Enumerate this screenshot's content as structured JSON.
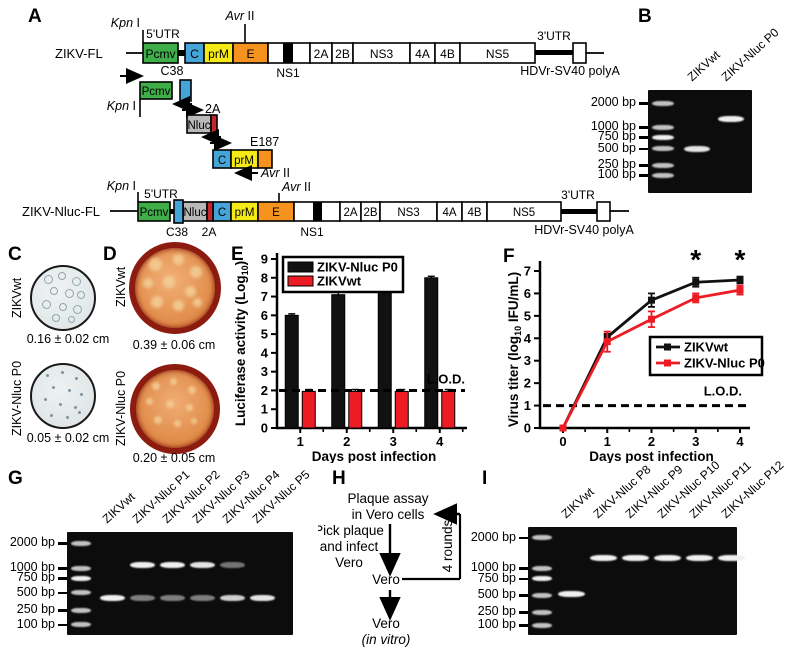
{
  "panels": {
    "a": "A",
    "b": "B",
    "c": "C",
    "d": "D",
    "e": "E",
    "f": "F",
    "g": "G",
    "h": "H",
    "i": "I"
  },
  "colors": {
    "pcmv": "#3fae49",
    "c_box": "#45a5d9",
    "prm": "#f5ea16",
    "e_box": "#f6921e",
    "nluc": "#b9b9b9",
    "small2a": "#c1272d",
    "series_red": "#ed1c24",
    "series_black": "#111111",
    "plate_rim": "#8c1b10",
    "plate_fill": "#e08a48",
    "well_fill": "#e6ebea"
  },
  "panelA": {
    "labels": {
      "fl": "ZIKV-FL",
      "nlucfl": "ZIKV-Nluc-FL",
      "kpn_it": "Kpn",
      "kpn_ro": " I",
      "avr_it": "Avr",
      "avr_ro": " II",
      "utr5": "5'UTR",
      "utr3": "3'UTR",
      "hdvr": "HDVr-SV40 polyA",
      "c38": "C38",
      "p2a": "2A",
      "e187": "E187",
      "ns1": "NS1",
      "pcmv": "Pcmv",
      "c": "C",
      "prm": "prM",
      "e": "E",
      "nluc": "Nluc",
      "s2a": "2A",
      "s2b": "2B",
      "ns3": "NS3",
      "s4a": "4A",
      "s4b": "4B",
      "ns5": "NS5"
    }
  },
  "gel_b": {
    "ladder": [
      "2000 bp",
      "1000 bp",
      "750 bp",
      "500 bp",
      "250 bp",
      "100 bp"
    ],
    "ladder_pos": [
      0.13,
      0.36,
      0.46,
      0.57,
      0.73,
      0.83
    ],
    "lanes": [
      {
        "label": "ZIKVwt",
        "bands": [
          {
            "f": 0.57,
            "s": 0.95
          }
        ]
      },
      {
        "label": "ZIKV-Nluc P0",
        "bands": [
          {
            "f": 0.28,
            "s": 1.0
          }
        ]
      }
    ]
  },
  "gel_g": {
    "ladder": [
      "2000 bp",
      "1000 bp",
      "750 bp",
      "500 bp",
      "250 bp",
      "100 bp"
    ],
    "ladder_pos": [
      0.11,
      0.35,
      0.45,
      0.59,
      0.76,
      0.9
    ],
    "lanes": [
      {
        "label": "ZIKVwt",
        "bands": [
          {
            "f": 0.64,
            "s": 1.0
          }
        ]
      },
      {
        "label": "ZIKV-Nluc P1",
        "bands": [
          {
            "f": 0.32,
            "s": 1.0
          },
          {
            "f": 0.64,
            "s": 0.5
          }
        ]
      },
      {
        "label": "ZIKV-Nluc P2",
        "bands": [
          {
            "f": 0.32,
            "s": 1.0
          },
          {
            "f": 0.64,
            "s": 0.5
          }
        ]
      },
      {
        "label": "ZIKV-Nluc P3",
        "bands": [
          {
            "f": 0.32,
            "s": 0.95
          },
          {
            "f": 0.64,
            "s": 0.5
          }
        ]
      },
      {
        "label": "ZIKV-Nluc P4",
        "bands": [
          {
            "f": 0.32,
            "s": 0.45
          },
          {
            "f": 0.64,
            "s": 0.85
          }
        ]
      },
      {
        "label": "ZIKV-Nluc P5",
        "bands": [
          {
            "f": 0.64,
            "s": 0.95
          }
        ]
      }
    ]
  },
  "gel_i": {
    "ladder": [
      "2000 bp",
      "1000 bp",
      "750 bp",
      "500 bp",
      "250 bp",
      "100 bp"
    ],
    "ladder_pos": [
      0.1,
      0.38,
      0.48,
      0.63,
      0.79,
      0.91
    ],
    "lanes": [
      {
        "label": "ZIKVwt",
        "bands": [
          {
            "f": 0.62,
            "s": 1.0
          }
        ]
      },
      {
        "label": "ZIKV-Nluc P8",
        "bands": [
          {
            "f": 0.29,
            "s": 1.0
          }
        ]
      },
      {
        "label": "ZIKV-Nluc P9",
        "bands": [
          {
            "f": 0.29,
            "s": 1.0
          }
        ]
      },
      {
        "label": "ZIKV-Nluc P10",
        "bands": [
          {
            "f": 0.29,
            "s": 1.0
          }
        ]
      },
      {
        "label": "ZIKV-Nluc P11",
        "bands": [
          {
            "f": 0.29,
            "s": 1.0
          }
        ]
      },
      {
        "label": "ZIKV-Nluc P12",
        "bands": [
          {
            "f": 0.29,
            "s": 1.0
          }
        ]
      }
    ]
  },
  "panelC": {
    "top": {
      "label": "ZIKVwt",
      "size": "0.16 ± 0.02 cm"
    },
    "bottom": {
      "label": "ZIKV-Nluc P0",
      "size": "0.05 ± 0.02 cm"
    }
  },
  "panelD": {
    "top": {
      "label": "ZIKVwt",
      "size": "0.39 ± 0.06 cm"
    },
    "bottom": {
      "label": "ZIKV-Nluc P0",
      "size": "0.20 ± 0.05 cm"
    }
  },
  "chart_data": [
    {
      "id": "luciferase",
      "type": "bar",
      "title": "",
      "categories": [
        "1",
        "2",
        "3",
        "4"
      ],
      "series": [
        {
          "name": "ZIKV-Nluc P0",
          "color": "#111111",
          "values": [
            6.0,
            7.1,
            8.4,
            8.0
          ],
          "errors": [
            0.08,
            0.15,
            0.08,
            0.08
          ]
        },
        {
          "name": "ZIKVwt",
          "color": "#ed1c24",
          "values": [
            1.95,
            1.95,
            1.95,
            1.95
          ],
          "errors": [
            0.1,
            0.1,
            0.1,
            0.1
          ]
        }
      ],
      "xlabel": "Days post infection",
      "ylabel": "Luciferase activity (Log10)",
      "ylabel_parts": [
        "Luciferase activity (Log",
        "10",
        ")"
      ],
      "ylim": [
        0,
        9
      ],
      "yticks": [
        0,
        1,
        2,
        3,
        4,
        5,
        6,
        7,
        8,
        9
      ],
      "lod": 2,
      "lod_label": "L.O.D.",
      "legend_position": "top-left",
      "grid": false
    },
    {
      "id": "titer",
      "type": "line",
      "title": "",
      "x": [
        0,
        1,
        2,
        3,
        4
      ],
      "series": [
        {
          "name": "ZIKVwt",
          "color": "#111111",
          "values": [
            0,
            4.05,
            5.7,
            6.5,
            6.6
          ],
          "errors": [
            0,
            0.15,
            0.3,
            0.2,
            0.15
          ]
        },
        {
          "name": "ZIKV-Nluc P0",
          "color": "#ed1c24",
          "values": [
            0,
            3.85,
            4.85,
            5.8,
            6.15
          ],
          "errors": [
            0,
            0.45,
            0.35,
            0.2,
            0.2
          ]
        }
      ],
      "xlabel": "Days post infection",
      "ylabel": "Virus titer (log10 IFU/mL)",
      "ylabel_parts": [
        "Virus titer (log",
        "10",
        " IFU/mL)"
      ],
      "ylim": [
        0,
        7
      ],
      "yticks": [
        0,
        1,
        2,
        3,
        4,
        5,
        6,
        7
      ],
      "xlim": [
        0,
        4
      ],
      "lod": 1,
      "lod_label": "L.O.D.",
      "significance": [
        {
          "x": 3,
          "label": "*"
        },
        {
          "x": 4,
          "label": "*"
        }
      ],
      "legend_position": "middle-right",
      "grid": false
    }
  ],
  "panelH": {
    "line1": "Plaque assay",
    "line2": "in Vero cells",
    "pick1": "Pick plaque",
    "pick2": "and infect",
    "pick3": "Vero",
    "vero_mid": "Vero",
    "rounds": "4 rounds",
    "vero_bottom": "Vero",
    "invitro": "(in vitro)"
  }
}
